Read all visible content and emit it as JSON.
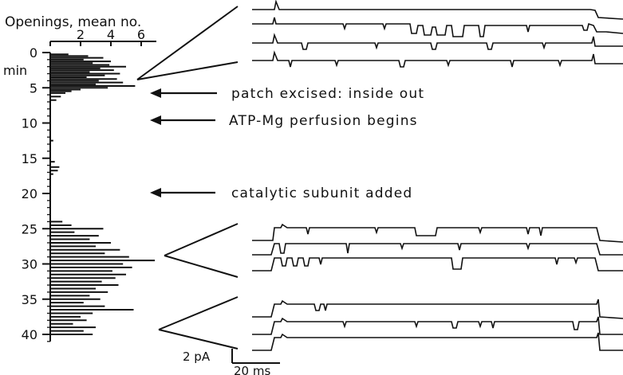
{
  "chart_data": {
    "type": "bar",
    "orientation": "horizontal",
    "x_title": "Openings, mean no.",
    "x_ticks": [
      "2",
      "4",
      "6"
    ],
    "x_tick_values": [
      2,
      4,
      6
    ],
    "xlim": [
      0,
      7
    ],
    "y_unit": "min",
    "y_ticks": [
      "0",
      "5",
      "10",
      "15",
      "20",
      "25",
      "30",
      "35",
      "40"
    ],
    "y_tick_values": [
      0,
      5,
      10,
      15,
      20,
      25,
      30,
      35,
      40
    ],
    "ylim": [
      0,
      41
    ],
    "grid": false,
    "bin_minutes": 0.25,
    "bars": [
      {
        "t": 0.25,
        "v": 1.2
      },
      {
        "t": 0.5,
        "v": 2.5
      },
      {
        "t": 0.75,
        "v": 3.5
      },
      {
        "t": 1.0,
        "v": 2.2
      },
      {
        "t": 1.25,
        "v": 4.0
      },
      {
        "t": 1.5,
        "v": 2.8
      },
      {
        "t": 1.75,
        "v": 3.9
      },
      {
        "t": 2.0,
        "v": 5.0
      },
      {
        "t": 2.25,
        "v": 3.3
      },
      {
        "t": 2.5,
        "v": 4.2
      },
      {
        "t": 2.75,
        "v": 2.6
      },
      {
        "t": 3.0,
        "v": 4.6
      },
      {
        "t": 3.25,
        "v": 3.6
      },
      {
        "t": 3.5,
        "v": 2.4
      },
      {
        "t": 3.75,
        "v": 4.4
      },
      {
        "t": 4.0,
        "v": 3.2
      },
      {
        "t": 4.25,
        "v": 4.8
      },
      {
        "t": 4.5,
        "v": 3.0
      },
      {
        "t": 4.75,
        "v": 5.6
      },
      {
        "t": 5.0,
        "v": 3.8
      },
      {
        "t": 5.25,
        "v": 2.0
      },
      {
        "t": 5.5,
        "v": 1.4
      },
      {
        "t": 5.75,
        "v": 1.0
      },
      {
        "t": 6.25,
        "v": 0.7
      },
      {
        "t": 6.75,
        "v": 0.4
      },
      {
        "t": 12.5,
        "v": 0.2
      },
      {
        "t": 15.5,
        "v": 0.3
      },
      {
        "t": 16.25,
        "v": 0.6
      },
      {
        "t": 16.75,
        "v": 0.5
      },
      {
        "t": 17.25,
        "v": 0.2
      },
      {
        "t": 24.0,
        "v": 0.8
      },
      {
        "t": 24.5,
        "v": 1.4
      },
      {
        "t": 25.0,
        "v": 3.5
      },
      {
        "t": 25.5,
        "v": 1.6
      },
      {
        "t": 26.0,
        "v": 3.2
      },
      {
        "t": 26.5,
        "v": 2.6
      },
      {
        "t": 27.0,
        "v": 4.0
      },
      {
        "t": 27.5,
        "v": 3.0
      },
      {
        "t": 28.0,
        "v": 4.6
      },
      {
        "t": 28.5,
        "v": 3.6
      },
      {
        "t": 29.0,
        "v": 5.2
      },
      {
        "t": 29.5,
        "v": 6.9
      },
      {
        "t": 30.0,
        "v": 4.8
      },
      {
        "t": 30.5,
        "v": 5.4
      },
      {
        "t": 31.0,
        "v": 4.1
      },
      {
        "t": 31.5,
        "v": 5.0
      },
      {
        "t": 32.0,
        "v": 4.3
      },
      {
        "t": 32.5,
        "v": 3.4
      },
      {
        "t": 33.0,
        "v": 4.5
      },
      {
        "t": 33.5,
        "v": 3.0
      },
      {
        "t": 34.0,
        "v": 3.8
      },
      {
        "t": 34.5,
        "v": 2.6
      },
      {
        "t": 35.0,
        "v": 3.3
      },
      {
        "t": 35.5,
        "v": 2.2
      },
      {
        "t": 36.0,
        "v": 3.6
      },
      {
        "t": 36.5,
        "v": 5.5
      },
      {
        "t": 37.0,
        "v": 2.8
      },
      {
        "t": 37.5,
        "v": 2.0
      },
      {
        "t": 38.0,
        "v": 2.4
      },
      {
        "t": 38.5,
        "v": 1.5
      },
      {
        "t": 39.0,
        "v": 3.0
      },
      {
        "t": 39.5,
        "v": 2.2
      },
      {
        "t": 40.0,
        "v": 2.8
      }
    ],
    "annotations": [
      {
        "text": "patch excised: inside out",
        "time_min": 5.7
      },
      {
        "text": "ATP-Mg perfusion begins",
        "time_min": 9.5
      },
      {
        "text": "catalytic subunit added",
        "time_min": 20.0
      }
    ],
    "scale_bar": {
      "current_label": "2 pA",
      "time_label": "20 ms"
    }
  }
}
